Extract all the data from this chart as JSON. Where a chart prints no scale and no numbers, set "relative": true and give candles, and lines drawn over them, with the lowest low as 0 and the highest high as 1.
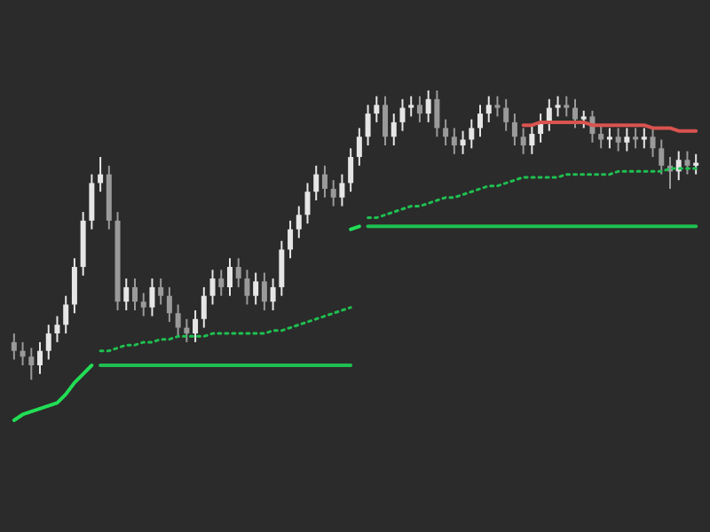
{
  "chart_data": {
    "type": "candlestick",
    "relative": true,
    "categories": [
      null,
      null,
      null,
      null,
      null,
      null,
      null,
      null,
      null,
      null,
      null,
      null,
      null,
      null,
      null,
      null,
      null,
      null,
      null,
      null,
      null,
      null,
      null,
      null,
      null,
      null,
      null,
      null,
      null,
      null,
      null,
      null,
      null,
      null,
      null,
      null,
      null,
      null,
      null,
      null,
      null,
      null,
      null,
      null,
      null,
      null,
      null,
      null,
      null,
      null,
      null,
      null,
      null,
      null,
      null,
      null,
      null,
      null,
      null,
      null,
      null,
      null,
      null,
      null,
      null,
      null,
      null,
      null,
      null,
      null,
      null,
      null,
      null,
      null,
      null,
      null,
      null,
      null,
      null,
      null
    ],
    "colors": [
      "#9a9a9a",
      "#9a9a9a",
      "#9a9a9a",
      "#e6e6e6",
      "#e6e6e6",
      "#e6e6e6",
      "#e6e6e6",
      "#e6e6e6",
      "#e6e6e6",
      "#e6e6e6",
      "#e6e6e6",
      "#9a9a9a",
      "#9a9a9a",
      "#e6e6e6",
      "#9a9a9a",
      "#9a9a9a",
      "#e6e6e6",
      "#9a9a9a",
      "#9a9a9a",
      "#9a9a9a",
      "#9a9a9a",
      "#e6e6e6",
      "#e6e6e6",
      "#e6e6e6",
      "#9a9a9a",
      "#e6e6e6",
      "#9a9a9a",
      "#9a9a9a",
      "#e6e6e6",
      "#9a9a9a",
      "#e6e6e6",
      "#e6e6e6",
      "#e6e6e6",
      "#e6e6e6",
      "#e6e6e6",
      "#e6e6e6",
      "#9a9a9a",
      "#9a9a9a",
      "#e6e6e6",
      "#e6e6e6",
      "#e6e6e6",
      "#e6e6e6",
      "#e6e6e6",
      "#9a9a9a",
      "#e6e6e6",
      "#e6e6e6",
      "#e6e6e6",
      "#9a9a9a",
      "#e6e6e6",
      "#9a9a9a",
      "#9a9a9a",
      "#9a9a9a",
      "#e6e6e6",
      "#e6e6e6",
      "#e6e6e6",
      "#e6e6e6",
      "#9a9a9a",
      "#9a9a9a",
      "#9a9a9a",
      "#9a9a9a",
      "#e6e6e6",
      "#e6e6e6",
      "#e6e6e6",
      "#e6e6e6",
      "#9a9a9a",
      "#9a9a9a",
      "#e6e6e6",
      "#9a9a9a",
      "#9a9a9a",
      "#e6e6e6",
      "#9a9a9a",
      "#e6e6e6",
      "#9a9a9a",
      "#e6e6e6",
      "#9a9a9a",
      "#9a9a9a",
      "#9a9a9a",
      "#e6e6e6",
      "#9a9a9a",
      "#e6e6e6"
    ],
    "ohlc": [
      [
        0.13,
        0.16,
        0.07,
        0.1
      ],
      [
        0.1,
        0.13,
        0.05,
        0.08
      ],
      [
        0.08,
        0.11,
        0,
        0.05
      ],
      [
        0.05,
        0.13,
        0.02,
        0.1
      ],
      [
        0.1,
        0.19,
        0.07,
        0.16
      ],
      [
        0.16,
        0.22,
        0.13,
        0.19
      ],
      [
        0.19,
        0.29,
        0.16,
        0.26
      ],
      [
        0.26,
        0.42,
        0.23,
        0.39
      ],
      [
        0.39,
        0.58,
        0.36,
        0.55
      ],
      [
        0.55,
        0.71,
        0.52,
        0.68
      ],
      [
        0.68,
        0.77,
        0.65,
        0.71
      ],
      [
        0.71,
        0.74,
        0.52,
        0.55
      ],
      [
        0.55,
        0.58,
        0.24,
        0.27
      ],
      [
        0.27,
        0.35,
        0.24,
        0.32
      ],
      [
        0.32,
        0.35,
        0.24,
        0.27
      ],
      [
        0.27,
        0.3,
        0.22,
        0.25
      ],
      [
        0.25,
        0.35,
        0.22,
        0.32
      ],
      [
        0.32,
        0.35,
        0.26,
        0.29
      ],
      [
        0.29,
        0.32,
        0.2,
        0.23
      ],
      [
        0.23,
        0.26,
        0.15,
        0.18
      ],
      [
        0.18,
        0.21,
        0.13,
        0.16
      ],
      [
        0.16,
        0.24,
        0.13,
        0.21
      ],
      [
        0.21,
        0.32,
        0.18,
        0.29
      ],
      [
        0.29,
        0.38,
        0.26,
        0.35
      ],
      [
        0.35,
        0.38,
        0.29,
        0.32
      ],
      [
        0.32,
        0.42,
        0.29,
        0.39
      ],
      [
        0.39,
        0.42,
        0.32,
        0.35
      ],
      [
        0.35,
        0.38,
        0.26,
        0.29
      ],
      [
        0.29,
        0.37,
        0.26,
        0.34
      ],
      [
        0.34,
        0.37,
        0.24,
        0.27
      ],
      [
        0.27,
        0.35,
        0.24,
        0.32
      ],
      [
        0.32,
        0.48,
        0.29,
        0.45
      ],
      [
        0.45,
        0.55,
        0.42,
        0.52
      ],
      [
        0.52,
        0.6,
        0.49,
        0.57
      ],
      [
        0.57,
        0.68,
        0.54,
        0.65
      ],
      [
        0.65,
        0.74,
        0.62,
        0.71
      ],
      [
        0.71,
        0.74,
        0.63,
        0.66
      ],
      [
        0.66,
        0.69,
        0.6,
        0.63
      ],
      [
        0.63,
        0.71,
        0.6,
        0.68
      ],
      [
        0.68,
        0.8,
        0.65,
        0.77
      ],
      [
        0.77,
        0.87,
        0.74,
        0.84
      ],
      [
        0.84,
        0.95,
        0.81,
        0.92
      ],
      [
        0.92,
        0.98,
        0.89,
        0.95
      ],
      [
        0.95,
        0.98,
        0.81,
        0.84
      ],
      [
        0.84,
        0.92,
        0.81,
        0.89
      ],
      [
        0.89,
        0.97,
        0.86,
        0.94
      ],
      [
        0.94,
        0.98,
        0.91,
        0.95
      ],
      [
        0.95,
        0.98,
        0.89,
        0.92
      ],
      [
        0.92,
        1.0,
        0.89,
        0.97
      ],
      [
        0.97,
        1.0,
        0.84,
        0.87
      ],
      [
        0.87,
        0.9,
        0.81,
        0.84
      ],
      [
        0.84,
        0.87,
        0.78,
        0.81
      ],
      [
        0.81,
        0.86,
        0.78,
        0.83
      ],
      [
        0.83,
        0.9,
        0.8,
        0.87
      ],
      [
        0.87,
        0.95,
        0.84,
        0.92
      ],
      [
        0.92,
        0.98,
        0.89,
        0.95
      ],
      [
        0.95,
        0.98,
        0.91,
        0.94
      ],
      [
        0.94,
        0.97,
        0.86,
        0.89
      ],
      [
        0.89,
        0.92,
        0.81,
        0.84
      ],
      [
        0.84,
        0.87,
        0.78,
        0.81
      ],
      [
        0.81,
        0.88,
        0.78,
        0.85
      ],
      [
        0.85,
        0.92,
        0.82,
        0.89
      ],
      [
        0.89,
        0.97,
        0.86,
        0.94
      ],
      [
        0.94,
        0.98,
        0.91,
        0.95
      ],
      [
        0.95,
        0.98,
        0.91,
        0.94
      ],
      [
        0.94,
        0.97,
        0.87,
        0.9
      ],
      [
        0.9,
        0.93,
        0.87,
        0.91
      ],
      [
        0.91,
        0.93,
        0.82,
        0.85
      ],
      [
        0.85,
        0.88,
        0.8,
        0.83
      ],
      [
        0.83,
        0.87,
        0.8,
        0.84
      ],
      [
        0.84,
        0.87,
        0.79,
        0.82
      ],
      [
        0.82,
        0.87,
        0.79,
        0.84
      ],
      [
        0.84,
        0.87,
        0.8,
        0.83
      ],
      [
        0.83,
        0.87,
        0.8,
        0.84
      ],
      [
        0.84,
        0.87,
        0.77,
        0.8
      ],
      [
        0.8,
        0.83,
        0.71,
        0.74
      ],
      [
        0.74,
        0.77,
        0.66,
        0.72
      ],
      [
        0.72,
        0.79,
        0.69,
        0.76
      ],
      [
        0.76,
        0.79,
        0.71,
        0.74
      ],
      [
        0.74,
        0.78,
        0.71,
        0.75
      ]
    ],
    "series": [
      {
        "type": "line",
        "color": "#22dd55",
        "line_style": "solid",
        "values": [
          -0.14,
          -0.12,
          -0.11,
          -0.1,
          -0.09,
          -0.08,
          -0.05,
          -0.01,
          0.02,
          0.05,
          null,
          null,
          null,
          null,
          null,
          null,
          null,
          null,
          null,
          null,
          null,
          null,
          null,
          null,
          null,
          null,
          null,
          null,
          null,
          null,
          null,
          null,
          null,
          null,
          null,
          null,
          null,
          null,
          null,
          null,
          null,
          null,
          null,
          null,
          null,
          null,
          null,
          null,
          null,
          null,
          null,
          null,
          null,
          null,
          null,
          null,
          null,
          null,
          null,
          null,
          null,
          null,
          null,
          null,
          null,
          null,
          null,
          null,
          null,
          null,
          null,
          null,
          null,
          null,
          null,
          null,
          null,
          null,
          null,
          null
        ]
      },
      {
        "type": "line",
        "color": "#1fbf50",
        "line_style": "solid",
        "values": [
          null,
          null,
          null,
          null,
          null,
          null,
          null,
          null,
          null,
          null,
          0.05,
          0.05,
          0.05,
          0.05,
          0.05,
          0.05,
          0.05,
          0.05,
          0.05,
          0.05,
          0.05,
          0.05,
          0.05,
          0.05,
          0.05,
          0.05,
          0.05,
          0.05,
          0.05,
          0.05,
          0.05,
          0.05,
          0.05,
          0.05,
          0.05,
          0.05,
          0.05,
          0.05,
          0.05,
          0.05,
          null,
          null,
          null,
          null,
          null,
          null,
          null,
          null,
          null,
          null,
          null,
          null,
          null,
          null,
          null,
          null,
          null,
          null,
          null,
          null,
          null,
          null,
          null,
          null,
          null,
          null,
          null,
          null,
          null,
          null,
          null,
          null,
          null,
          null,
          null,
          null,
          null,
          null,
          null,
          null
        ]
      },
      {
        "type": "line",
        "color": "#1fbf50",
        "line_style": "dotted",
        "values": [
          null,
          null,
          null,
          null,
          null,
          null,
          null,
          null,
          null,
          null,
          0.1,
          0.1,
          0.11,
          0.12,
          0.12,
          0.13,
          0.13,
          0.14,
          0.14,
          0.15,
          0.15,
          0.15,
          0.15,
          0.16,
          0.16,
          0.16,
          0.16,
          0.16,
          0.16,
          0.16,
          0.17,
          0.17,
          0.18,
          0.19,
          0.2,
          0.21,
          0.22,
          0.23,
          0.24,
          0.25,
          null,
          null,
          null,
          null,
          null,
          null,
          null,
          null,
          null,
          null,
          null,
          null,
          null,
          null,
          null,
          null,
          null,
          null,
          null,
          null,
          null,
          null,
          null,
          null,
          null,
          null,
          null,
          null,
          null,
          null,
          null,
          null,
          null,
          null,
          null,
          null,
          null,
          null,
          null,
          null
        ]
      },
      {
        "type": "line",
        "color": "#22dd55",
        "line_style": "solid",
        "values": [
          null,
          null,
          null,
          null,
          null,
          null,
          null,
          null,
          null,
          null,
          null,
          null,
          null,
          null,
          null,
          null,
          null,
          null,
          null,
          null,
          null,
          null,
          null,
          null,
          null,
          null,
          null,
          null,
          null,
          null,
          null,
          null,
          null,
          null,
          null,
          null,
          null,
          null,
          null,
          0.52,
          0.53,
          null,
          null,
          null,
          null,
          null,
          null,
          null,
          null,
          null,
          null,
          null,
          null,
          null,
          null,
          null,
          null,
          null,
          null,
          null,
          null,
          null,
          null,
          null,
          null,
          null,
          null,
          null,
          null,
          null,
          null,
          null,
          null,
          null,
          null,
          null,
          null,
          null,
          null,
          null
        ]
      },
      {
        "type": "line",
        "color": "#1fbf50",
        "line_style": "solid",
        "values": [
          null,
          null,
          null,
          null,
          null,
          null,
          null,
          null,
          null,
          null,
          null,
          null,
          null,
          null,
          null,
          null,
          null,
          null,
          null,
          null,
          null,
          null,
          null,
          null,
          null,
          null,
          null,
          null,
          null,
          null,
          null,
          null,
          null,
          null,
          null,
          null,
          null,
          null,
          null,
          null,
          null,
          0.53,
          0.53,
          0.53,
          0.53,
          0.53,
          0.53,
          0.53,
          0.53,
          0.53,
          0.53,
          0.53,
          0.53,
          0.53,
          0.53,
          0.53,
          0.53,
          0.53,
          0.53,
          0.53,
          0.53,
          0.53,
          0.53,
          0.53,
          0.53,
          0.53,
          0.53,
          0.53,
          0.53,
          0.53,
          0.53,
          0.53,
          0.53,
          0.53,
          0.53,
          0.53,
          0.53,
          0.53,
          0.53,
          0.53
        ]
      },
      {
        "type": "line",
        "color": "#1fbf50",
        "line_style": "dotted",
        "values": [
          null,
          null,
          null,
          null,
          null,
          null,
          null,
          null,
          null,
          null,
          null,
          null,
          null,
          null,
          null,
          null,
          null,
          null,
          null,
          null,
          null,
          null,
          null,
          null,
          null,
          null,
          null,
          null,
          null,
          null,
          null,
          null,
          null,
          null,
          null,
          null,
          null,
          null,
          null,
          null,
          null,
          0.56,
          0.56,
          0.57,
          0.58,
          0.59,
          0.6,
          0.6,
          0.61,
          0.62,
          0.63,
          0.63,
          0.64,
          0.65,
          0.66,
          0.67,
          0.67,
          0.68,
          0.69,
          0.7,
          0.7,
          0.7,
          0.7,
          0.7,
          0.71,
          0.71,
          0.71,
          0.71,
          0.71,
          0.71,
          0.72,
          0.72,
          0.72,
          0.72,
          0.72,
          0.72,
          0.73,
          0.73,
          0.73,
          0.73
        ]
      },
      {
        "type": "line",
        "color": "#d9534f",
        "line_style": "solid",
        "values": [
          null,
          null,
          null,
          null,
          null,
          null,
          null,
          null,
          null,
          null,
          null,
          null,
          null,
          null,
          null,
          null,
          null,
          null,
          null,
          null,
          null,
          null,
          null,
          null,
          null,
          null,
          null,
          null,
          null,
          null,
          null,
          null,
          null,
          null,
          null,
          null,
          null,
          null,
          null,
          null,
          null,
          null,
          null,
          null,
          null,
          null,
          null,
          null,
          null,
          null,
          null,
          null,
          null,
          null,
          null,
          null,
          null,
          null,
          null,
          0.88,
          0.88,
          0.89,
          0.89,
          0.89,
          0.89,
          0.89,
          0.89,
          0.88,
          0.88,
          0.88,
          0.88,
          0.88,
          0.88,
          0.88,
          0.87,
          0.87,
          0.87,
          0.86,
          0.86,
          0.86
        ]
      }
    ]
  }
}
